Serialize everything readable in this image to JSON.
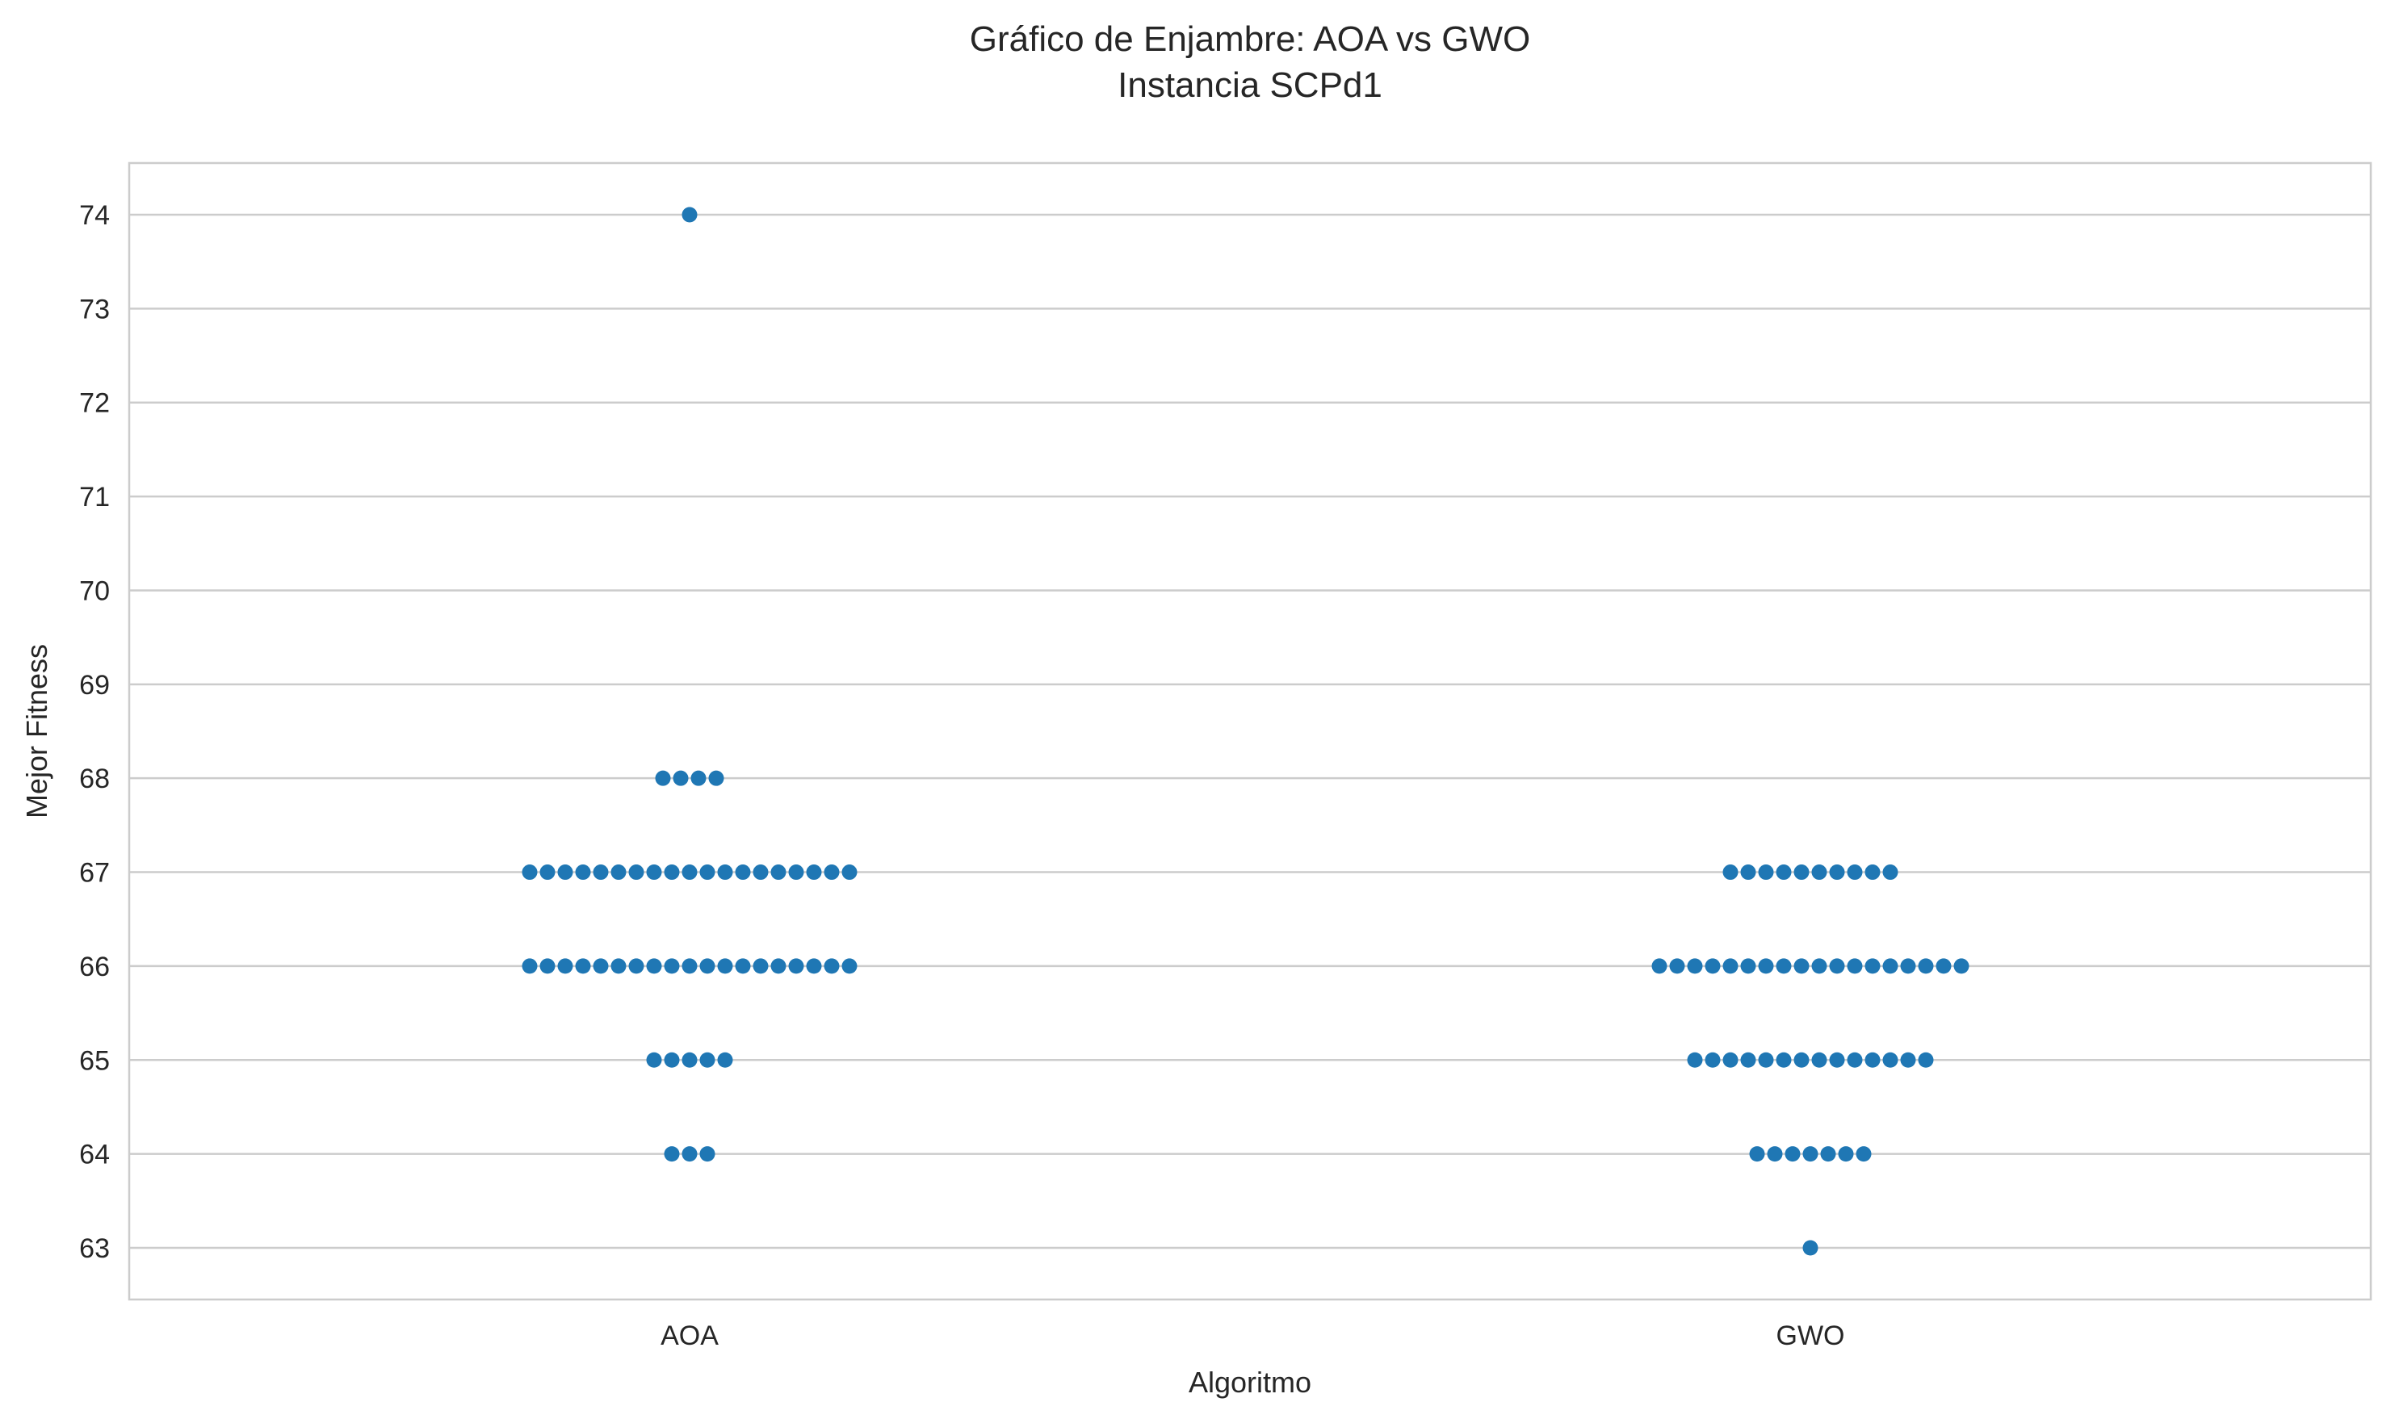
{
  "chart_data": {
    "type": "scatter",
    "subtype": "swarm",
    "title": "Gráfico de Enjambre: AOA vs GWO",
    "subtitle": "Instancia SCPd1",
    "xlabel": "Algoritmo",
    "ylabel": "Mejor Fitness",
    "categories": [
      "AOA",
      "GWO"
    ],
    "ylim": [
      62.45,
      74.55
    ],
    "yticks": [
      63,
      64,
      65,
      66,
      67,
      68,
      69,
      70,
      71,
      72,
      73,
      74
    ],
    "grid": true,
    "point_color": "#1f77b4",
    "series": [
      {
        "name": "AOA",
        "counts": [
          {
            "value": 64,
            "count": 3
          },
          {
            "value": 65,
            "count": 5
          },
          {
            "value": 66,
            "count": 19
          },
          {
            "value": 67,
            "count": 19
          },
          {
            "value": 68,
            "count": 4
          },
          {
            "value": 74,
            "count": 1
          }
        ]
      },
      {
        "name": "GWO",
        "counts": [
          {
            "value": 63,
            "count": 1
          },
          {
            "value": 64,
            "count": 7
          },
          {
            "value": 65,
            "count": 14
          },
          {
            "value": 66,
            "count": 18
          },
          {
            "value": 67,
            "count": 10
          }
        ]
      }
    ]
  }
}
